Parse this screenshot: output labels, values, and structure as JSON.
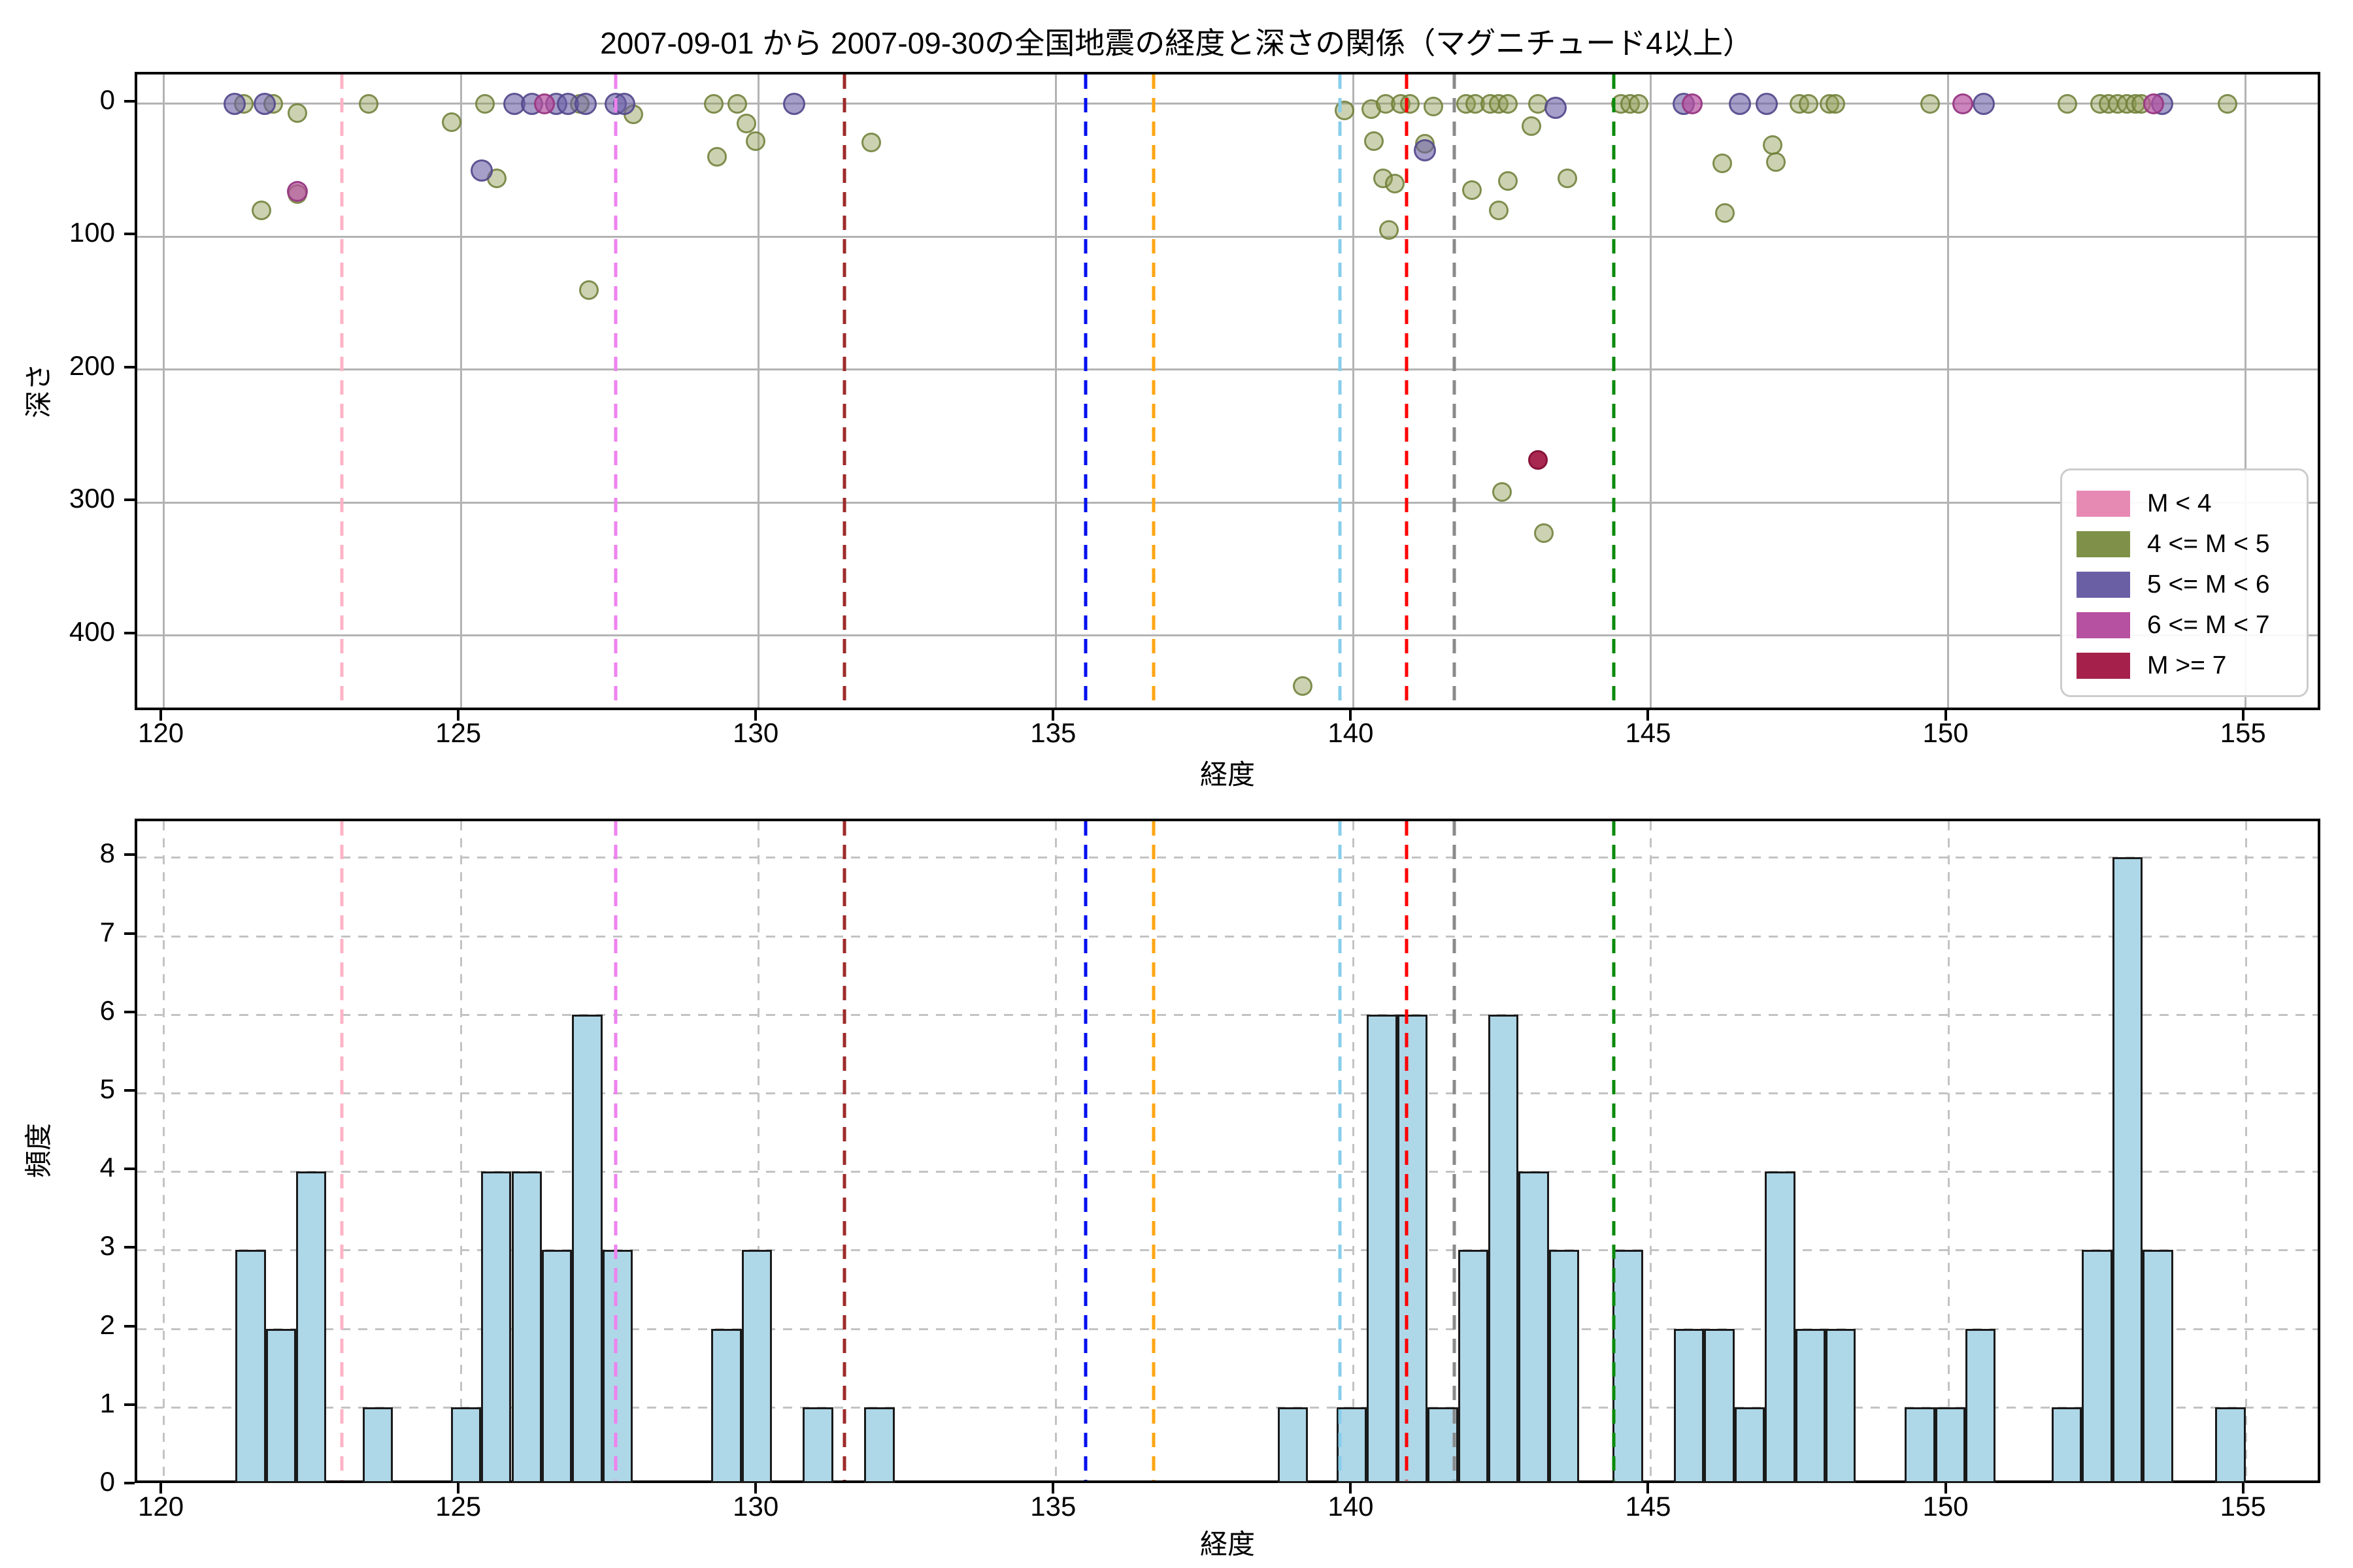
{
  "title": "2007-09-01 から 2007-09-30の全国地震の経度と深さの関係（マグニチュード4以上）",
  "legend": {
    "entries": [
      {
        "label": "M < 4",
        "key": "pink"
      },
      {
        "label": "4 <= M < 5",
        "key": "olive"
      },
      {
        "label": "5 <= M < 6",
        "key": "purple"
      },
      {
        "label": "6 <= M < 7",
        "key": "magenta"
      },
      {
        "label": "M >= 7",
        "key": "crimson"
      }
    ]
  },
  "colors": {
    "pink": {
      "legend": "#e78ab3",
      "fill": "rgba(231,138,179,0.55)",
      "edge": "rgba(200,100,145,0.9)",
      "r": 15
    },
    "olive": {
      "legend": "#7f9148",
      "fill": "rgba(142,156,82,0.45)",
      "edge": "rgba(108,124,52,0.8)",
      "r": 15
    },
    "purple": {
      "legend": "#6a5fa5",
      "fill": "rgba(106,95,165,0.6)",
      "edge": "rgba(82,70,138,0.85)",
      "r": 17
    },
    "magenta": {
      "legend": "#b650a0",
      "fill": "rgba(182,80,160,0.7)",
      "edge": "rgba(150,55,130,0.9)",
      "r": 16
    },
    "crimson": {
      "legend": "#a5214b",
      "fill": "rgba(165,33,75,0.97)",
      "edge": "rgba(136,18,58,1)",
      "r": 15
    },
    "bar_fill": "#aed7e8",
    "bar_edge": "#1a1a1a"
  },
  "chart_data": [
    {
      "type": "scatter",
      "xlabel": "経度",
      "ylabel": "深さ",
      "xlim": [
        119.56,
        156.3
      ],
      "ylim": [
        -22,
        458
      ],
      "y_inverted_depth_down": true,
      "xticks": [
        120,
        125,
        130,
        135,
        140,
        145,
        150,
        155
      ],
      "yticks": [
        0,
        100,
        200,
        300,
        400
      ],
      "grid": "solid",
      "legend_position": "lower right",
      "series": [
        {
          "name": "M < 4",
          "key": "pink",
          "points": []
        },
        {
          "name": "4 <= M < 5",
          "key": "olive",
          "points": [
            [
              121.35,
              0
            ],
            [
              121.85,
              0
            ],
            [
              122.25,
              7
            ],
            [
              123.45,
              0
            ],
            [
              124.85,
              14
            ],
            [
              125.4,
              0
            ],
            [
              127.0,
              0
            ],
            [
              127.9,
              8
            ],
            [
              121.65,
              80
            ],
            [
              122.25,
              68
            ],
            [
              125.6,
              56
            ],
            [
              127.15,
              140
            ],
            [
              129.25,
              0
            ],
            [
              129.65,
              0
            ],
            [
              129.8,
              15
            ],
            [
              129.95,
              28
            ],
            [
              129.3,
              40
            ],
            [
              131.9,
              29
            ],
            [
              139.85,
              5
            ],
            [
              140.3,
              4
            ],
            [
              140.55,
              0
            ],
            [
              140.8,
              0
            ],
            [
              140.95,
              0
            ],
            [
              141.35,
              2
            ],
            [
              141.9,
              0
            ],
            [
              142.05,
              0
            ],
            [
              142.3,
              0
            ],
            [
              142.45,
              0
            ],
            [
              142.6,
              0
            ],
            [
              143.1,
              0
            ],
            [
              143.0,
              17
            ],
            [
              140.35,
              28
            ],
            [
              141.2,
              30
            ],
            [
              140.5,
              56
            ],
            [
              140.7,
              60
            ],
            [
              142.0,
              65
            ],
            [
              142.6,
              58
            ],
            [
              143.6,
              56
            ],
            [
              142.45,
              80
            ],
            [
              140.6,
              95
            ],
            [
              139.15,
              438
            ],
            [
              142.5,
              292
            ],
            [
              143.2,
              323
            ],
            [
              144.5,
              0
            ],
            [
              144.65,
              0
            ],
            [
              144.8,
              0
            ],
            [
              146.2,
              45
            ],
            [
              146.25,
              82
            ],
            [
              147.05,
              31
            ],
            [
              147.1,
              44
            ],
            [
              147.5,
              0
            ],
            [
              147.65,
              0
            ],
            [
              148.0,
              0
            ],
            [
              148.1,
              0
            ],
            [
              149.7,
              0
            ],
            [
              152.0,
              0
            ],
            [
              152.55,
              0
            ],
            [
              152.7,
              0
            ],
            [
              152.85,
              0
            ],
            [
              153.0,
              0
            ],
            [
              153.15,
              0
            ],
            [
              153.25,
              0
            ],
            [
              154.7,
              0
            ]
          ]
        },
        {
          "name": "5 <= M < 6",
          "key": "purple",
          "points": [
            [
              121.2,
              0
            ],
            [
              121.7,
              0
            ],
            [
              125.9,
              0
            ],
            [
              126.2,
              0
            ],
            [
              126.6,
              0
            ],
            [
              126.8,
              0
            ],
            [
              127.1,
              0
            ],
            [
              127.6,
              0
            ],
            [
              127.75,
              0
            ],
            [
              125.35,
              50
            ],
            [
              130.6,
              0
            ],
            [
              141.2,
              35
            ],
            [
              143.4,
              3
            ],
            [
              145.55,
              0
            ],
            [
              146.5,
              0
            ],
            [
              146.95,
              0
            ],
            [
              150.6,
              0
            ],
            [
              153.6,
              0
            ]
          ]
        },
        {
          "name": "6 <= M < 7",
          "key": "magenta",
          "points": [
            [
              122.25,
              66
            ],
            [
              126.4,
              0
            ],
            [
              145.7,
              0
            ],
            [
              150.25,
              0
            ],
            [
              153.45,
              0
            ]
          ]
        },
        {
          "name": "M >= 7",
          "key": "crimson",
          "points": [
            [
              143.1,
              268
            ]
          ]
        }
      ],
      "vlines": [
        {
          "x": 123.0,
          "color": "#ffb3c6",
          "name": "pink"
        },
        {
          "x": 127.6,
          "color": "#ee82ee",
          "name": "violet"
        },
        {
          "x": 131.45,
          "color": "#9e2a2a",
          "name": "darkred"
        },
        {
          "x": 135.5,
          "color": "#0010ee",
          "name": "blue"
        },
        {
          "x": 136.65,
          "color": "#ffa512",
          "name": "orange"
        },
        {
          "x": 139.78,
          "color": "#87ceeb",
          "name": "skyblue"
        },
        {
          "x": 140.9,
          "color": "#ff0000",
          "name": "red"
        },
        {
          "x": 141.7,
          "color": "#8a8a8a",
          "name": "gray"
        },
        {
          "x": 144.38,
          "color": "#0a8a0a",
          "name": "green"
        }
      ]
    },
    {
      "type": "bar",
      "xlabel": "経度",
      "ylabel": "頻度",
      "xlim": [
        119.56,
        156.3
      ],
      "ylim": [
        0,
        8.46
      ],
      "xticks": [
        120,
        125,
        130,
        135,
        140,
        145,
        150,
        155
      ],
      "yticks": [
        0,
        1,
        2,
        3,
        4,
        5,
        6,
        7,
        8
      ],
      "grid": "dashed",
      "bars": [
        [
          121.21,
          121.72,
          3
        ],
        [
          121.72,
          122.23,
          2
        ],
        [
          122.23,
          122.74,
          4
        ],
        [
          123.35,
          123.86,
          1
        ],
        [
          124.83,
          125.34,
          1
        ],
        [
          125.34,
          125.85,
          4
        ],
        [
          125.85,
          126.36,
          4
        ],
        [
          126.36,
          126.87,
          3
        ],
        [
          126.87,
          127.38,
          6
        ],
        [
          127.38,
          127.89,
          3
        ],
        [
          129.21,
          129.72,
          2
        ],
        [
          129.72,
          130.23,
          3
        ],
        [
          130.75,
          131.26,
          1
        ],
        [
          131.78,
          132.29,
          1
        ],
        [
          138.73,
          139.24,
          1
        ],
        [
          139.72,
          140.23,
          1
        ],
        [
          140.23,
          140.74,
          6
        ],
        [
          140.74,
          141.25,
          6
        ],
        [
          141.25,
          141.76,
          1
        ],
        [
          141.76,
          142.27,
          3
        ],
        [
          142.27,
          142.78,
          6
        ],
        [
          142.78,
          143.29,
          4
        ],
        [
          143.29,
          143.8,
          3
        ],
        [
          144.36,
          144.87,
          3
        ],
        [
          145.39,
          145.9,
          2
        ],
        [
          145.9,
          146.41,
          2
        ],
        [
          146.41,
          146.92,
          1
        ],
        [
          146.92,
          147.43,
          4
        ],
        [
          147.43,
          147.94,
          2
        ],
        [
          147.94,
          148.45,
          2
        ],
        [
          149.27,
          149.78,
          1
        ],
        [
          149.78,
          150.29,
          1
        ],
        [
          150.29,
          150.8,
          2
        ],
        [
          151.74,
          152.25,
          1
        ],
        [
          152.25,
          152.76,
          3
        ],
        [
          152.76,
          153.27,
          8
        ],
        [
          153.27,
          153.78,
          3
        ],
        [
          154.49,
          155.0,
          1
        ]
      ],
      "vlines": [
        {
          "x": 123.0,
          "color": "#ffb3c6",
          "name": "pink"
        },
        {
          "x": 127.6,
          "color": "#ee82ee",
          "name": "violet"
        },
        {
          "x": 131.45,
          "color": "#9e2a2a",
          "name": "darkred"
        },
        {
          "x": 135.5,
          "color": "#0010ee",
          "name": "blue"
        },
        {
          "x": 136.65,
          "color": "#ffa512",
          "name": "orange"
        },
        {
          "x": 139.78,
          "color": "#87ceeb",
          "name": "skyblue"
        },
        {
          "x": 140.9,
          "color": "#ff0000",
          "name": "red"
        },
        {
          "x": 141.7,
          "color": "#8a8a8a",
          "name": "gray"
        },
        {
          "x": 144.38,
          "color": "#0a8a0a",
          "name": "green"
        }
      ]
    }
  ]
}
